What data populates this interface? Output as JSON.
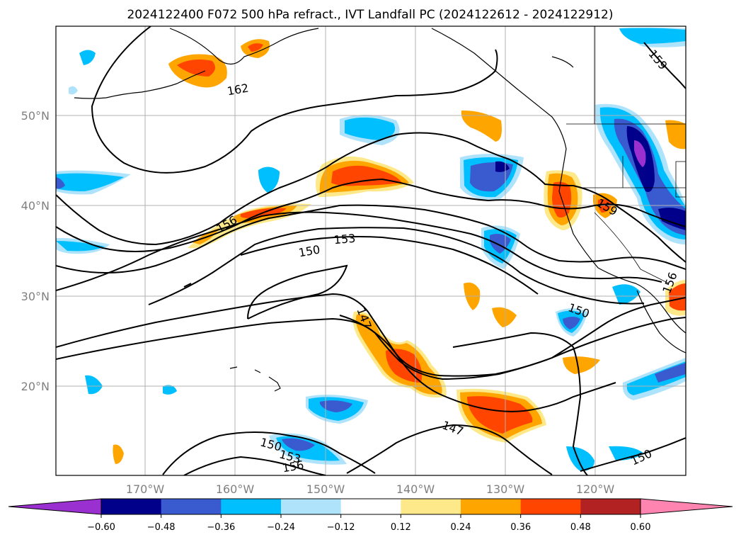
{
  "title": "2024122400 F072 500 hPa refract., IVT Landfall PC (2024122612 - 2024122912)",
  "lat_labels": [
    "50°N",
    "40°N",
    "30°N",
    "20°N"
  ],
  "lon_labels": [
    "170°W",
    "160°W",
    "150°W",
    "140°W",
    "130°W",
    "120°W"
  ],
  "contour_labels": [
    "162",
    "159",
    "159",
    "156",
    "156",
    "153",
    "150",
    "147",
    "150",
    "147",
    "150",
    "153",
    "156",
    "150"
  ],
  "colorbar": {
    "ticks": [
      "−0.60",
      "−0.48",
      "−0.36",
      "−0.24",
      "−0.12",
      "0.12",
      "0.24",
      "0.36",
      "0.48",
      "0.60"
    ],
    "colors": [
      "#9b30d0",
      "#00008b",
      "#3a5bcf",
      "#00bfff",
      "#aee3fb",
      "#ffffff",
      "#fde98a",
      "#ffa500",
      "#ff4500",
      "#b22222",
      "#ff85b0"
    ],
    "extend": "both"
  },
  "map": {
    "lon_range": [
      "180°W",
      "110°W"
    ],
    "lat_range": [
      "10°N",
      "60°N"
    ],
    "gridlines": true,
    "contour_field": "500 hPa refractivity",
    "shaded_field": "IVT Landfall PC"
  }
}
